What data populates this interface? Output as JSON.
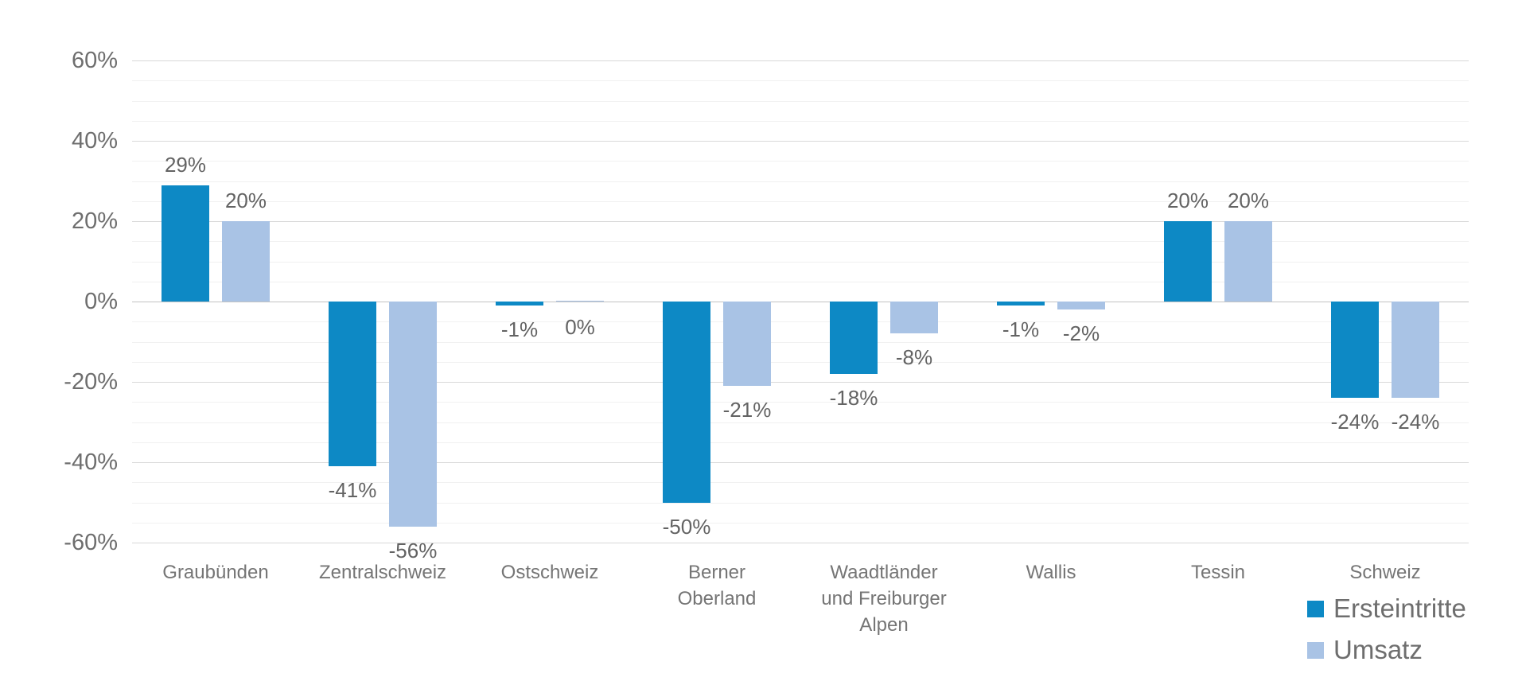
{
  "chart_data": {
    "type": "bar",
    "title": "",
    "xlabel": "",
    "ylabel": "",
    "categories": [
      {
        "label": "Graubünden",
        "label_lines": [
          "Graubünden"
        ]
      },
      {
        "label": "Zentralschweiz",
        "label_lines": [
          "Zentralschweiz"
        ]
      },
      {
        "label": "Ostschweiz",
        "label_lines": [
          "Ostschweiz"
        ]
      },
      {
        "label": "Berner Oberland",
        "label_lines": [
          "Berner",
          "Oberland"
        ]
      },
      {
        "label": "Waadtländer und Freiburger Alpen",
        "label_lines": [
          "Waadtländer",
          "und Freiburger",
          "Alpen"
        ]
      },
      {
        "label": "Wallis",
        "label_lines": [
          "Wallis"
        ]
      },
      {
        "label": "Tessin",
        "label_lines": [
          "Tessin"
        ]
      },
      {
        "label": "Schweiz",
        "label_lines": [
          "Schweiz"
        ]
      }
    ],
    "series": [
      {
        "name": "Ersteintritte",
        "color": "#0d89c5",
        "values": [
          29,
          -41,
          -1,
          -50,
          -18,
          -1,
          20,
          -24
        ],
        "data_labels": [
          "29%",
          "-41%",
          "-1%",
          "-50%",
          "-18%",
          "-1%",
          "20%",
          "-24%"
        ]
      },
      {
        "name": "Umsatz",
        "color": "#a9c3e5",
        "values": [
          20,
          -56,
          0,
          -21,
          -8,
          -2,
          20,
          -24
        ],
        "data_labels": [
          "20%",
          "-56%",
          "0%",
          "-21%",
          "-8%",
          "-2%",
          "20%",
          "-24%"
        ]
      }
    ],
    "y_axis": {
      "tick_labels": [
        "60%",
        "40%",
        "20%",
        "0%",
        "-20%",
        "-40%",
        "-60%"
      ],
      "tick_values": [
        60,
        40,
        20,
        0,
        -20,
        -40,
        -60
      ],
      "min": -60,
      "max": 60,
      "major_step": 20,
      "minor_step": 5
    },
    "grid": "major and minor horizontal gridlines",
    "legend_position": "bottom-right",
    "legend": [
      {
        "label": "Ersteintritte",
        "color": "#0d89c5"
      },
      {
        "label": "Umsatz",
        "color": "#a9c3e5"
      }
    ],
    "colors": {
      "background": "#ffffff",
      "grid_minor": "#f1f1f1",
      "grid_major": "#d9d9d9",
      "axis_line": "#c3c3c3",
      "tick_text": "#6e6e6e",
      "data_label_text": "#636363",
      "category_text": "#757575",
      "legend_text": "#6e6e6e"
    }
  }
}
